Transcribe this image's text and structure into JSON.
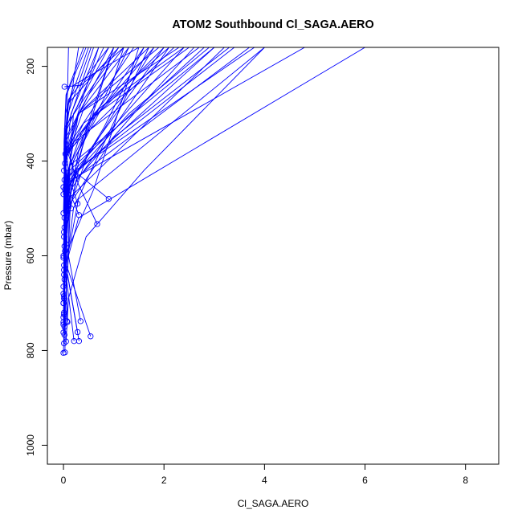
{
  "chart_data": {
    "type": "line",
    "title": "ATOM2 Southbound Cl_SAGA.AERO",
    "xlabel": "Cl_SAGA.AERO",
    "ylabel": "Pressure (mbar)",
    "xlim": [
      -0.32,
      8.66
    ],
    "ylim": [
      1040,
      160
    ],
    "y_reversed": true,
    "x_ticks": [
      "0",
      "2",
      "4",
      "6",
      "8"
    ],
    "y_ticks": [
      "200",
      "400",
      "600",
      "800",
      "1000"
    ],
    "grid": false,
    "legend": "none",
    "series_color": "#0000ff",
    "markers": "open circles at the bottom of each profile",
    "series": [
      {
        "x": [
          0.02,
          0.35,
          1.2
        ],
        "y": [
          243,
          240,
          160
        ]
      },
      {
        "x": [
          0.03,
          0.04,
          0.1,
          0.3,
          6.0
        ],
        "y": [
          804,
          700,
          600,
          520,
          160
        ]
      },
      {
        "x": [
          0.05,
          0.1,
          0.45,
          1.6,
          4.0
        ],
        "y": [
          781,
          690,
          560,
          420,
          160
        ]
      },
      {
        "x": [
          0.21,
          0.05,
          0.1,
          3.2
        ],
        "y": [
          780,
          640,
          480,
          160
        ]
      },
      {
        "x": [
          0.31,
          0.08,
          0.15,
          2.1
        ],
        "y": [
          780,
          640,
          460,
          160
        ]
      },
      {
        "x": [
          0.54,
          0.06,
          0.2,
          1.7
        ],
        "y": [
          770,
          620,
          500,
          160
        ]
      },
      {
        "x": [
          0.28,
          0.05,
          0.3,
          4.0
        ],
        "y": [
          761,
          620,
          480,
          160
        ]
      },
      {
        "x": [
          0.34,
          0.1,
          0.12,
          2.8
        ],
        "y": [
          738,
          600,
          420,
          160
        ]
      },
      {
        "x": [
          0.07,
          0.04,
          0.06,
          3.7
        ],
        "y": [
          738,
          600,
          450,
          160
        ]
      },
      {
        "x": [
          0.0,
          0.02,
          0.05,
          2.4
        ],
        "y": [
          762,
          620,
          440,
          160
        ]
      },
      {
        "x": [
          0.02,
          0.03,
          0.08,
          1.8
        ],
        "y": [
          767,
          640,
          460,
          160
        ]
      },
      {
        "x": [
          0.0,
          0.02,
          0.05,
          0.3,
          3.0
        ],
        "y": [
          740,
          640,
          540,
          420,
          160
        ]
      },
      {
        "x": [
          0.01,
          0.03,
          0.6,
          1.5
        ],
        "y": [
          724,
          600,
          460,
          160
        ]
      },
      {
        "x": [
          0.02,
          0.05,
          0.2,
          1.3
        ],
        "y": [
          690,
          560,
          400,
          160
        ]
      },
      {
        "x": [
          0.01,
          0.04,
          0.1,
          0.2,
          0.9
        ],
        "y": [
          685,
          580,
          450,
          300,
          160
        ]
      },
      {
        "x": [
          0.0,
          0.02,
          0.07,
          0.5,
          2.0
        ],
        "y": [
          700,
          600,
          500,
          320,
          160
        ]
      },
      {
        "x": [
          0.01,
          0.02,
          0.03,
          0.05,
          0.7
        ],
        "y": [
          640,
          560,
          480,
          380,
          160
        ]
      },
      {
        "x": [
          0.01,
          0.02,
          0.04,
          0.2,
          2.7
        ],
        "y": [
          620,
          540,
          460,
          360,
          160
        ]
      },
      {
        "x": [
          0.0,
          0.03,
          0.25,
          3.4
        ],
        "y": [
          604,
          520,
          420,
          160
        ]
      },
      {
        "x": [
          0.9,
          0.2,
          0.05,
          1.0
        ],
        "y": [
          480,
          420,
          350,
          160
        ]
      },
      {
        "x": [
          0.67,
          0.3,
          0.08,
          2.2
        ],
        "y": [
          533,
          450,
          380,
          160
        ]
      },
      {
        "x": [
          0.31,
          0.06,
          0.02,
          1.4
        ],
        "y": [
          514,
          450,
          380,
          160
        ]
      },
      {
        "x": [
          0.28,
          0.1,
          0.04,
          0.8
        ],
        "y": [
          490,
          430,
          340,
          160
        ]
      },
      {
        "x": [
          0.15,
          0.05,
          0.03,
          0.6
        ],
        "y": [
          500,
          420,
          340,
          160
        ]
      },
      {
        "x": [
          0.1,
          0.03,
          0.02,
          1.1
        ],
        "y": [
          495,
          410,
          330,
          160
        ]
      },
      {
        "x": [
          0.03,
          0.02,
          0.4,
          2.5
        ],
        "y": [
          460,
          400,
          320,
          160
        ]
      },
      {
        "x": [
          0.05,
          0.02,
          0.3,
          1.9
        ],
        "y": [
          470,
          400,
          300,
          160
        ]
      },
      {
        "x": [
          0.02,
          0.01,
          0.1,
          0.5
        ],
        "y": [
          440,
          380,
          280,
          160
        ]
      },
      {
        "x": [
          0.01,
          0.01,
          0.05,
          0.4
        ],
        "y": [
          420,
          360,
          260,
          160
        ]
      },
      {
        "x": [
          0.02,
          0.02,
          0.05,
          0.3,
          1.3
        ],
        "y": [
          520,
          470,
          400,
          300,
          160
        ]
      },
      {
        "x": [
          0.01,
          0.02,
          0.2,
          0.7,
          1.6
        ],
        "y": [
          560,
          480,
          400,
          300,
          160
        ]
      },
      {
        "x": [
          0.02,
          0.04,
          0.1,
          0.3,
          2.3
        ],
        "y": [
          580,
          500,
          420,
          300,
          160
        ]
      },
      {
        "x": [
          0.0,
          0.01,
          0.06,
          0.9,
          1.2
        ],
        "y": [
          510,
          460,
          380,
          260,
          160
        ]
      },
      {
        "x": [
          0.0,
          0.01,
          0.03,
          0.1,
          3.8
        ],
        "y": [
          730,
          620,
          520,
          430,
          160
        ]
      },
      {
        "x": [
          0.01,
          0.02,
          0.04,
          0.15,
          4.8
        ],
        "y": [
          690,
          600,
          520,
          440,
          160
        ]
      },
      {
        "x": [
          0.0,
          0.02,
          0.05,
          0.12,
          3.0
        ],
        "y": [
          745,
          640,
          520,
          410,
          160
        ]
      },
      {
        "x": [
          0.02,
          0.03,
          0.06,
          0.8,
          1.6
        ],
        "y": [
          650,
          560,
          460,
          330,
          160
        ]
      },
      {
        "x": [
          0.0,
          0.01,
          0.02,
          0.1,
          0.5,
          1.0
        ],
        "y": [
          700,
          620,
          540,
          460,
          330,
          160
        ]
      },
      {
        "x": [
          0.01,
          0.02,
          0.03,
          0.25,
          1.4,
          2.6
        ],
        "y": [
          720,
          640,
          560,
          440,
          300,
          160
        ]
      },
      {
        "x": [
          0.0,
          0.01,
          0.04,
          0.35,
          1.8
        ],
        "y": [
          600,
          520,
          440,
          340,
          160
        ]
      },
      {
        "x": [
          0.02,
          0.02,
          0.05,
          0.15,
          0.7
        ],
        "y": [
          540,
          480,
          400,
          300,
          160
        ]
      },
      {
        "x": [
          0.05,
          0.04,
          0.08,
          0.6,
          2.1
        ],
        "y": [
          575,
          500,
          420,
          300,
          160
        ]
      },
      {
        "x": [
          0.0,
          0.02,
          0.04,
          0.08,
          1.1
        ],
        "y": [
          455,
          410,
          350,
          280,
          160
        ]
      },
      {
        "x": [
          0.03,
          0.02,
          0.03,
          0.06,
          0.45
        ],
        "y": [
          405,
          370,
          320,
          260,
          160
        ]
      },
      {
        "x": [
          0.04,
          0.03,
          0.04,
          0.2,
          1.5
        ],
        "y": [
          385,
          350,
          300,
          240,
          160
        ]
      },
      {
        "x": [
          0.06,
          0.05,
          0.1,
          0.9
        ],
        "y": [
          375,
          330,
          270,
          160
        ]
      },
      {
        "x": [
          0.0,
          0.03,
          0.12,
          1.3,
          2.9
        ],
        "y": [
          680,
          560,
          440,
          300,
          160
        ]
      },
      {
        "x": [
          0.01,
          0.02,
          0.05,
          0.5,
          2.0
        ],
        "y": [
          785,
          660,
          520,
          380,
          160
        ]
      },
      {
        "x": [
          0.02,
          0.03,
          0.07,
          1.0,
          3.3
        ],
        "y": [
          750,
          640,
          500,
          350,
          160
        ]
      },
      {
        "x": [
          0.0,
          0.01,
          0.02,
          0.06,
          0.3
        ],
        "y": [
          665,
          560,
          460,
          330,
          160
        ]
      },
      {
        "x": [
          0.01,
          0.01,
          0.03,
          0.09,
          0.55
        ],
        "y": [
          630,
          520,
          420,
          300,
          160
        ]
      },
      {
        "x": [
          0.03,
          0.02,
          0.04,
          0.4,
          1.7
        ],
        "y": [
          590,
          500,
          400,
          290,
          160
        ]
      },
      {
        "x": [
          0.01,
          0.03,
          0.06,
          0.7,
          2.4
        ],
        "y": [
          550,
          470,
          390,
          290,
          160
        ]
      },
      {
        "x": [
          0.0,
          0.02,
          0.04,
          0.5,
          1.2
        ],
        "y": [
          470,
          420,
          360,
          260,
          160
        ]
      },
      {
        "x": [
          0.0,
          0.02,
          0.03,
          0.1
        ],
        "y": [
          805,
          700,
          500,
          160
        ]
      },
      {
        "x": [
          0.08,
          0.05,
          0.06,
          0.3,
          1.0
        ],
        "y": [
          740,
          640,
          520,
          380,
          160
        ]
      }
    ]
  }
}
